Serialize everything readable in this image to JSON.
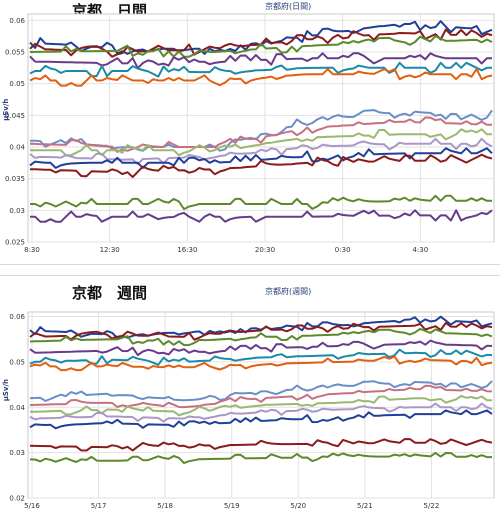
{
  "charts": [
    {
      "id": "daily",
      "title": "京都　日間",
      "subtitle": "京都府(日間)",
      "ylabel": "μSv/h",
      "ylim": [
        0.025,
        0.061
      ],
      "yticks": [
        "0.06",
        "0.055",
        "0.05",
        "0.045",
        "0.04",
        "0.035",
        "0.03",
        "0.025"
      ],
      "ytick_values": [
        0.06,
        0.055,
        0.05,
        0.045,
        0.04,
        0.035,
        0.03,
        0.025
      ],
      "xticks": [
        "8:30",
        "12:30",
        "16:30",
        "20:30",
        "0:30",
        "4:30"
      ],
      "grid": true,
      "colors": [
        "#1f3f99",
        "#8b1a1a",
        "#5a8a2a",
        "#6a3a8a",
        "#1a8aa8",
        "#e06010",
        "#6a8fc8",
        "#c87080",
        "#9ab870",
        "#a898c8"
      ]
    },
    {
      "id": "weekly",
      "title": "京都　週間",
      "subtitle": "京都府(週間)",
      "ylabel": "μSv/h",
      "ylim": [
        0.02,
        0.061
      ],
      "yticks": [
        "0.06",
        "0.05",
        "0.04",
        "0.03",
        "0.02"
      ],
      "ytick_values": [
        0.06,
        0.05,
        0.04,
        0.03,
        0.02
      ],
      "xticks": [
        "5/16",
        "5/17",
        "5/18",
        "5/19",
        "5/20",
        "5/21",
        "5/22"
      ],
      "grid": true,
      "colors": [
        "#1f3f99",
        "#8b1a1a",
        "#5a8a2a",
        "#6a3a8a",
        "#1a8aa8",
        "#e06010",
        "#6a8fc8",
        "#c87080",
        "#9ab870",
        "#a898c8"
      ]
    }
  ],
  "chart_data": [
    {
      "type": "line",
      "title": "京都　日間",
      "subtitle": "京都府(日間)",
      "xlabel": "",
      "ylabel": "μSv/h",
      "ylim": [
        0.025,
        0.061
      ],
      "x": [
        "8:30",
        "12:30",
        "16:30",
        "20:30",
        "0:30",
        "4:30"
      ],
      "legend": "none",
      "grid": true,
      "series": [
        {
          "values": [
            0.0565,
            0.0555,
            0.0555,
            0.0575,
            0.0595,
            0.0585
          ]
        },
        {
          "values": [
            0.0555,
            0.055,
            0.0555,
            0.057,
            0.058,
            0.0575
          ]
        },
        {
          "values": [
            0.055,
            0.0552,
            0.055,
            0.056,
            0.0565,
            0.057
          ]
        },
        {
          "values": [
            0.0535,
            0.0532,
            0.0535,
            0.054,
            0.054,
            0.054
          ]
        },
        {
          "values": [
            0.052,
            0.052,
            0.0518,
            0.0525,
            0.0525,
            0.0525
          ]
        },
        {
          "values": [
            0.0505,
            0.0505,
            0.0505,
            0.0515,
            0.0515,
            0.0515
          ]
        },
        {
          "values": [
            0.041,
            0.04,
            0.04,
            0.044,
            0.0455,
            0.045
          ]
        },
        {
          "values": [
            0.0405,
            0.04,
            0.04,
            0.043,
            0.044,
            0.0435
          ]
        },
        {
          "values": [
            0.0395,
            0.0395,
            0.0395,
            0.0415,
            0.042,
            0.042
          ]
        },
        {
          "values": [
            0.0385,
            0.038,
            0.0385,
            0.04,
            0.0405,
            0.0405
          ]
        },
        {
          "values": [
            0.0375,
            0.0375,
            0.0375,
            0.0385,
            0.039,
            0.039
          ]
        },
        {
          "values": [
            0.0365,
            0.036,
            0.0365,
            0.0375,
            0.0378,
            0.038
          ]
        },
        {
          "values": [
            0.031,
            0.031,
            0.031,
            0.031,
            0.0315,
            0.0315
          ]
        },
        {
          "values": [
            0.029,
            0.029,
            0.029,
            0.029,
            0.0292,
            0.0292
          ]
        }
      ]
    },
    {
      "type": "line",
      "title": "京都　週間",
      "subtitle": "京都府(週間)",
      "xlabel": "",
      "ylabel": "μSv/h",
      "ylim": [
        0.02,
        0.061
      ],
      "x": [
        "5/16",
        "5/17",
        "5/18",
        "5/19",
        "5/20",
        "5/21",
        "5/22"
      ],
      "legend": "none",
      "grid": true,
      "series": [
        {
          "values": [
            0.057,
            0.056,
            0.0565,
            0.0575,
            0.058,
            0.0595,
            0.0585
          ]
        },
        {
          "values": [
            0.0555,
            0.056,
            0.0555,
            0.057,
            0.0575,
            0.058,
            0.0575
          ]
        },
        {
          "values": [
            0.0545,
            0.055,
            0.0545,
            0.0555,
            0.056,
            0.0565,
            0.056
          ]
        },
        {
          "values": [
            0.052,
            0.0525,
            0.052,
            0.053,
            0.0535,
            0.054,
            0.0535
          ]
        },
        {
          "values": [
            0.05,
            0.0505,
            0.05,
            0.051,
            0.0515,
            0.052,
            0.0515
          ]
        },
        {
          "values": [
            0.049,
            0.049,
            0.0488,
            0.0495,
            0.05,
            0.0505,
            0.05
          ]
        },
        {
          "values": [
            0.042,
            0.043,
            0.0415,
            0.0435,
            0.0445,
            0.0455,
            0.045
          ]
        },
        {
          "values": [
            0.0405,
            0.041,
            0.04,
            0.042,
            0.043,
            0.044,
            0.0435
          ]
        },
        {
          "values": [
            0.039,
            0.0395,
            0.039,
            0.0405,
            0.041,
            0.042,
            0.0415
          ]
        },
        {
          "values": [
            0.0375,
            0.038,
            0.0375,
            0.039,
            0.0395,
            0.04,
            0.04
          ]
        },
        {
          "values": [
            0.036,
            0.0365,
            0.036,
            0.037,
            0.0378,
            0.0385,
            0.0385
          ]
        },
        {
          "values": [
            0.0315,
            0.0312,
            0.0315,
            0.0318,
            0.032,
            0.0322,
            0.032
          ]
        },
        {
          "values": [
            0.0285,
            0.0282,
            0.0285,
            0.0288,
            0.029,
            0.0292,
            0.029
          ]
        }
      ]
    }
  ]
}
